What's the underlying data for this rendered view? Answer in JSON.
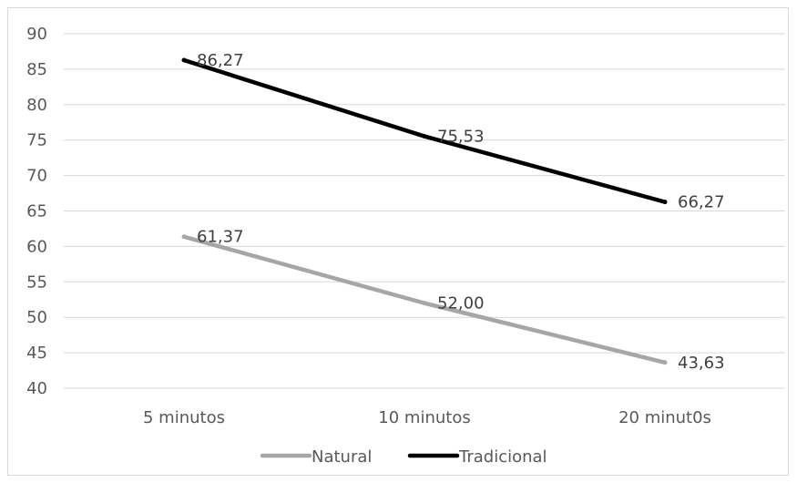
{
  "chart_data": {
    "type": "line",
    "categories": [
      "5 minutos",
      "10 minutos",
      "20 minut0s"
    ],
    "series": [
      {
        "name": "Natural",
        "values": [
          61.37,
          52.0,
          43.63
        ],
        "labels": [
          "61,37",
          "52,00",
          "43,63"
        ],
        "color": "#a6a6a6"
      },
      {
        "name": "Tradicional",
        "values": [
          86.27,
          75.53,
          66.27
        ],
        "labels": [
          "86,27",
          "75,53",
          "66,27"
        ],
        "color": "#000000"
      }
    ],
    "ylim": [
      40,
      90
    ],
    "yticks": [
      "40",
      "45",
      "50",
      "55",
      "60",
      "65",
      "70",
      "75",
      "80",
      "85",
      "90"
    ],
    "grid": true,
    "legend": "bottom"
  }
}
